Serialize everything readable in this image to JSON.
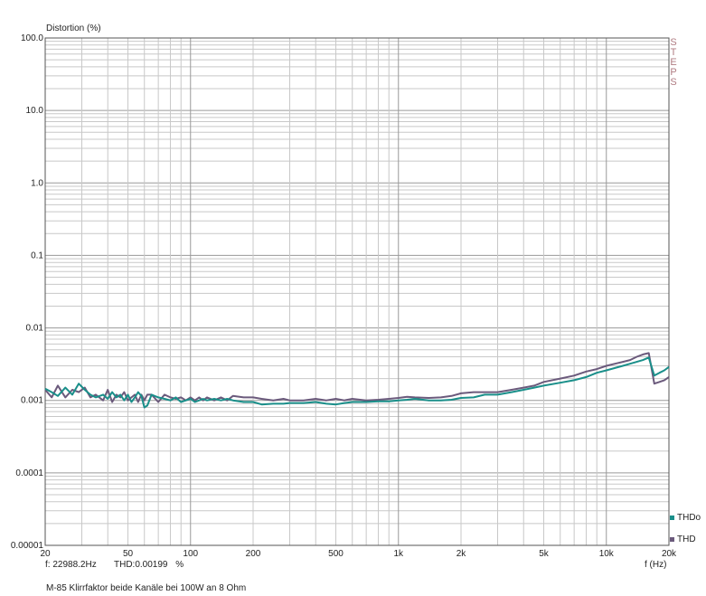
{
  "chart_data": {
    "type": "line",
    "title": "",
    "ylabel": "Distortion (%)",
    "xlabel": "f (Hz)",
    "xscale": "log",
    "yscale": "log",
    "xlim": [
      20,
      20000
    ],
    "ylim": [
      1e-05,
      100
    ],
    "grid": true,
    "legend_position": "bottom-right",
    "y_tick_labels": [
      "100.0",
      "10.0",
      "1.0",
      "0.1",
      "0.01",
      "0.001",
      "0.0001",
      "0.00001"
    ],
    "y_tick_values": [
      100,
      10,
      1,
      0.1,
      0.01,
      0.001,
      0.0001,
      1e-05
    ],
    "x_tick_labels": [
      "20",
      "50",
      "100",
      "200",
      "500",
      "1k",
      "2k",
      "5k",
      "10k",
      "20k"
    ],
    "x_tick_values": [
      20,
      50,
      100,
      200,
      500,
      1000,
      2000,
      5000,
      10000,
      20000
    ],
    "side_label": "STEPS",
    "series": [
      {
        "name": "THDo",
        "color": "#1a8f8a",
        "x": [
          20,
          21.5,
          23,
          25,
          27,
          29,
          31,
          33,
          35,
          38,
          40,
          42,
          44,
          46,
          48,
          50,
          52,
          54,
          56,
          58,
          60,
          62,
          65,
          70,
          75,
          80,
          85,
          90,
          95,
          100,
          105,
          110,
          115,
          120,
          130,
          140,
          150,
          160,
          180,
          200,
          220,
          250,
          280,
          300,
          350,
          400,
          450,
          500,
          550,
          600,
          700,
          800,
          900,
          1000,
          1100,
          1200,
          1400,
          1600,
          1800,
          2000,
          2300,
          2600,
          3000,
          3500,
          4000,
          4500,
          5000,
          6000,
          7000,
          8000,
          9000,
          10000,
          11000,
          12000,
          13000,
          14000,
          15000,
          16000,
          17000,
          18000,
          19000,
          20000
        ],
        "y": [
          0.00145,
          0.0013,
          0.00115,
          0.0015,
          0.0012,
          0.0017,
          0.0014,
          0.0012,
          0.0011,
          0.0012,
          0.00105,
          0.0013,
          0.0011,
          0.0012,
          0.001,
          0.0012,
          0.00095,
          0.0011,
          0.0013,
          0.00115,
          0.0008,
          0.00085,
          0.0012,
          0.0011,
          0.00105,
          0.001,
          0.0011,
          0.00095,
          0.001,
          0.00105,
          0.00095,
          0.001,
          0.00105,
          0.001,
          0.00105,
          0.001,
          0.00105,
          0.001,
          0.00095,
          0.00095,
          0.00088,
          0.0009,
          0.0009,
          0.00092,
          0.00092,
          0.00095,
          0.0009,
          0.00088,
          0.00092,
          0.00095,
          0.00095,
          0.00097,
          0.00097,
          0.001,
          0.00102,
          0.00105,
          0.001,
          0.001,
          0.00102,
          0.00108,
          0.0011,
          0.0012,
          0.0012,
          0.0013,
          0.0014,
          0.0015,
          0.0016,
          0.00175,
          0.0019,
          0.0021,
          0.0024,
          0.0026,
          0.0028,
          0.003,
          0.0032,
          0.0034,
          0.0036,
          0.0039,
          0.0022,
          0.0024,
          0.0026,
          0.0029
        ]
      },
      {
        "name": "THD",
        "color": "#6b5a7c",
        "x": [
          20,
          21.5,
          23,
          25,
          27,
          29,
          31,
          33,
          35,
          38,
          40,
          42,
          44,
          46,
          48,
          50,
          52,
          54,
          56,
          58,
          60,
          62,
          65,
          70,
          75,
          80,
          85,
          90,
          95,
          100,
          105,
          110,
          115,
          120,
          130,
          140,
          150,
          160,
          180,
          200,
          220,
          250,
          280,
          300,
          350,
          400,
          450,
          500,
          550,
          600,
          700,
          800,
          900,
          1000,
          1100,
          1200,
          1400,
          1600,
          1800,
          2000,
          2300,
          2600,
          3000,
          3500,
          4000,
          4500,
          5000,
          6000,
          7000,
          8000,
          9000,
          10000,
          11000,
          12000,
          13000,
          14000,
          15000,
          16000,
          17000,
          18000,
          19000,
          20000
        ],
        "y": [
          0.0014,
          0.0011,
          0.0016,
          0.0011,
          0.0014,
          0.0013,
          0.0015,
          0.0011,
          0.0012,
          0.001,
          0.0014,
          0.00095,
          0.0012,
          0.0011,
          0.0013,
          0.001,
          0.0011,
          0.0012,
          0.00095,
          0.0012,
          0.001,
          0.0012,
          0.0012,
          0.00095,
          0.0012,
          0.0011,
          0.00105,
          0.0011,
          0.001,
          0.0011,
          0.001,
          0.0011,
          0.001,
          0.0011,
          0.001,
          0.0011,
          0.001,
          0.00115,
          0.0011,
          0.0011,
          0.00105,
          0.001,
          0.00105,
          0.001,
          0.001,
          0.00105,
          0.001,
          0.00105,
          0.001,
          0.00105,
          0.001,
          0.00102,
          0.00105,
          0.00108,
          0.00112,
          0.0011,
          0.00108,
          0.0011,
          0.00115,
          0.00125,
          0.0013,
          0.0013,
          0.0013,
          0.0014,
          0.0015,
          0.0016,
          0.0018,
          0.002,
          0.0022,
          0.0025,
          0.0027,
          0.003,
          0.0032,
          0.0034,
          0.0036,
          0.004,
          0.0043,
          0.0045,
          0.0017,
          0.0018,
          0.0019,
          0.0021
        ]
      }
    ]
  },
  "cursor": {
    "freq_text": "f: 22988.2Hz",
    "thd_text": "THD:0.00199",
    "unit_text": "%"
  },
  "caption": "M-85 Klirrfaktor beide Kanäle bei 100W an 8 Ohm"
}
